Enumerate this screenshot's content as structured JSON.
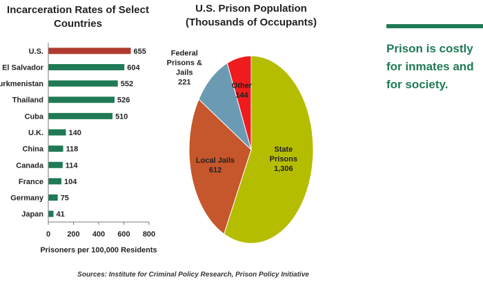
{
  "colors": {
    "accent": "#1f7a55",
    "highlight": "#b03a2e"
  },
  "side_message": "Prison is costly for inmates and for society.",
  "source_note": "Sources: Institute for Criminal Policy Research, Prison Policy Initiative",
  "chart_data": [
    {
      "type": "bar",
      "orientation": "horizontal",
      "title": "Incarceration Rates of Select Countries",
      "title_lines": [
        "Incarceration Rates of Select",
        "Countries"
      ],
      "xlabel": "Prisoners per 100,000 Residents",
      "ylabel": "",
      "xlim": [
        0,
        800
      ],
      "xticks": [
        0,
        200,
        400,
        600,
        800
      ],
      "categories": [
        "U.S.",
        "El Salvador",
        "Turkmenistan",
        "Thailand",
        "Cuba",
        "U.K.",
        "China",
        "Canada",
        "France",
        "Germany",
        "Japan"
      ],
      "values": [
        655,
        604,
        552,
        526,
        510,
        140,
        118,
        114,
        104,
        75,
        41
      ],
      "bar_colors": [
        "#b03a2e",
        "#1f7a55",
        "#1f7a55",
        "#1f7a55",
        "#1f7a55",
        "#1f7a55",
        "#1f7a55",
        "#1f7a55",
        "#1f7a55",
        "#1f7a55",
        "#1f7a55"
      ],
      "data_labels": true,
      "grid": false
    },
    {
      "type": "pie",
      "title": "U.S. Prison Population (Thousands of Occupants)",
      "title_lines": [
        "U.S. Prison Population",
        "(Thousands of Occupants)"
      ],
      "slices": [
        {
          "label": "State Prisons",
          "label_lines": [
            "State",
            "Prisons"
          ],
          "value": 1306,
          "value_text": "1,306",
          "color": "#b5bd00"
        },
        {
          "label": "Local Jails",
          "label_lines": [
            "Local Jails"
          ],
          "value": 612,
          "value_text": "612",
          "color": "#c6562b"
        },
        {
          "label": "Federal Prisons & Jails",
          "label_lines": [
            "Federal",
            "Prisons &",
            "Jails"
          ],
          "value": 221,
          "value_text": "221",
          "color": "#6b9bb3"
        },
        {
          "label": "Other",
          "label_lines": [
            "Other"
          ],
          "value": 144,
          "value_text": "144",
          "color": "#ee1c1c"
        }
      ]
    }
  ]
}
